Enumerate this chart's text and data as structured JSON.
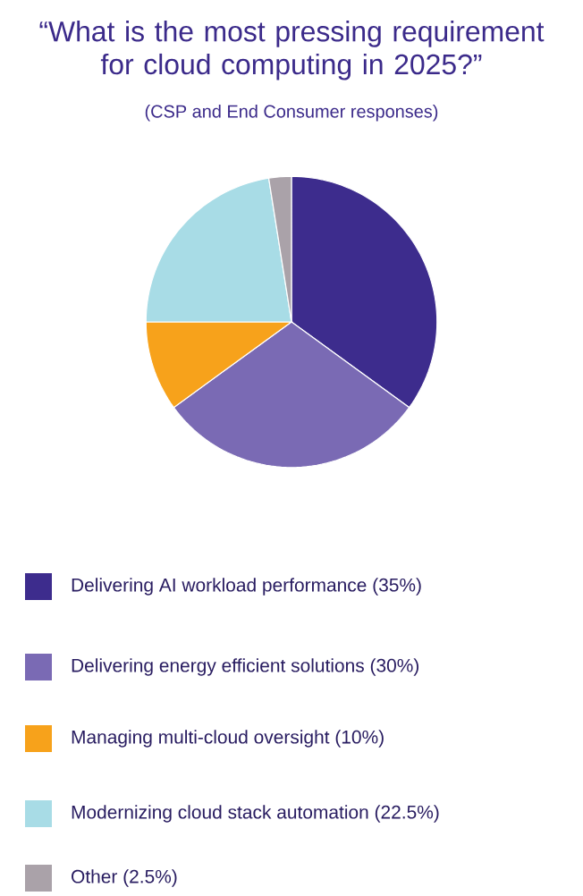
{
  "chart_data": {
    "type": "pie",
    "title": "“What is the most pressing requirement for cloud computing in 2025?”",
    "subtitle": "(CSP and End Consumer responses)",
    "categories": [
      "Delivering AI workload performance (35%)",
      "Delivering energy efficient solutions (30%)",
      "Managing multi-cloud oversight (10%)",
      "Modernizing cloud stack automation (22.5%)",
      "Other (2.5%)"
    ],
    "values": [
      35,
      30,
      10,
      22.5,
      2.5
    ],
    "colors": [
      "#3d2c8d",
      "#7a6ab4",
      "#f7a21b",
      "#a8dce6",
      "#aaa2a9"
    ],
    "legend": "bottom"
  }
}
